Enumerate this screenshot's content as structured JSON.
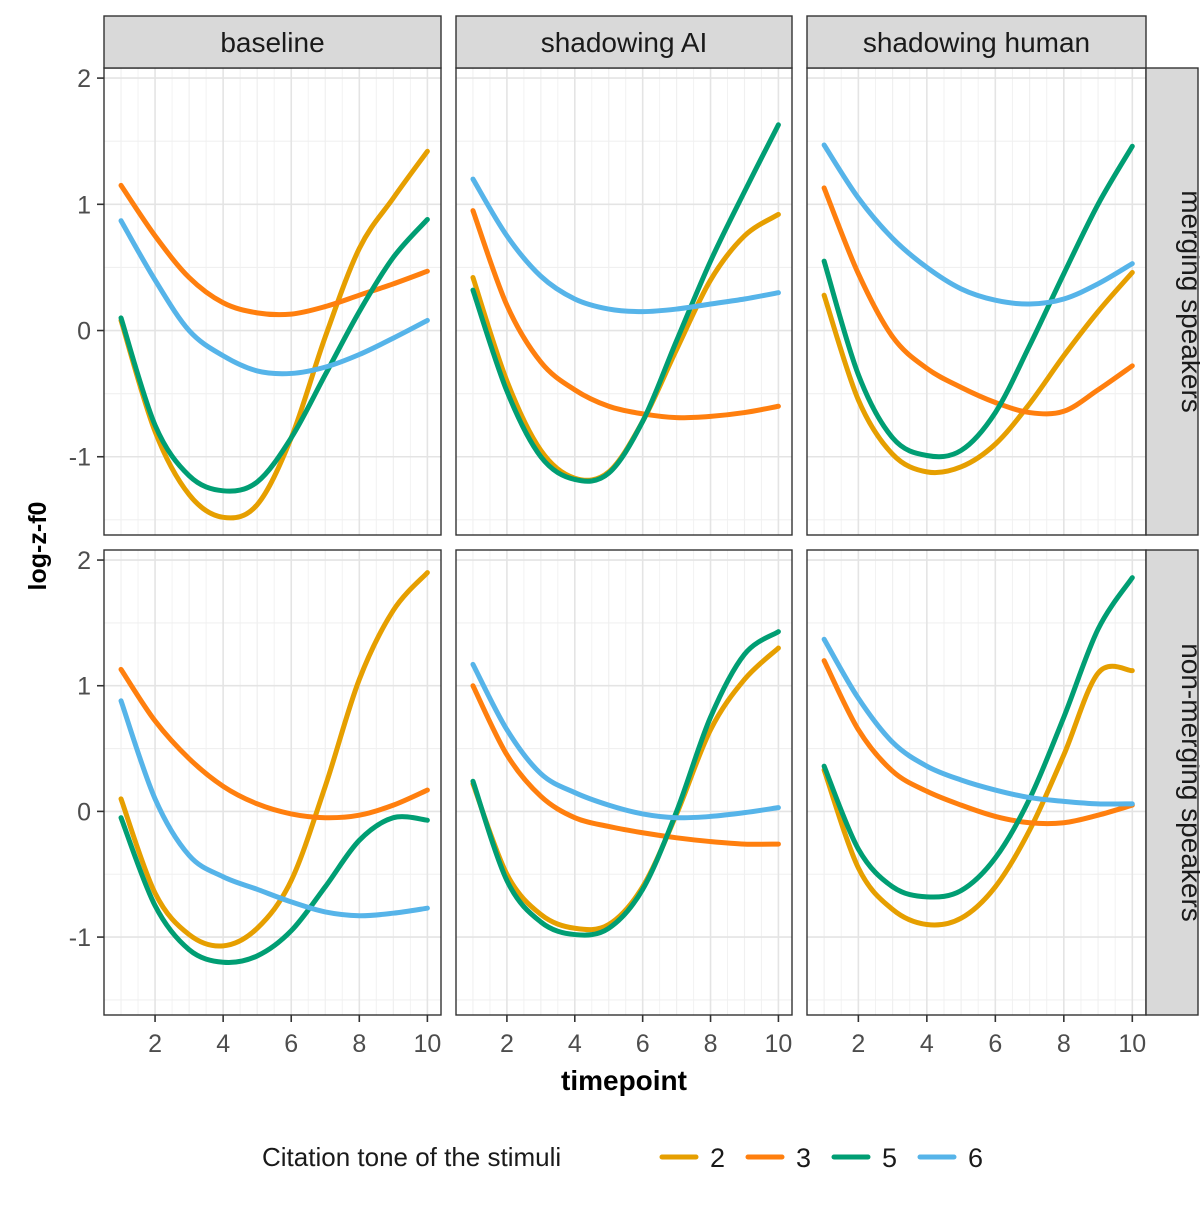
{
  "chart_data": {
    "type": "line",
    "xlabel": "timepoint",
    "ylabel": "log-z-f0",
    "xlim": [
      0.5,
      10.4
    ],
    "ylim": [
      -1.62,
      2.08
    ],
    "x_ticks": [
      2,
      4,
      6,
      8,
      10
    ],
    "y_ticks": [
      -1,
      0,
      1,
      2
    ],
    "y_tick_labels": [
      "-1",
      "0",
      "1",
      "2"
    ],
    "grid": true,
    "column_facets": [
      "baseline",
      "shadowing AI",
      "shadowing human"
    ],
    "row_facets": [
      "merging speakers",
      "non-merging speakers"
    ],
    "legend": {
      "title": "Citation tone of the stimuli",
      "position": "bottom",
      "entries": [
        {
          "label": "2",
          "color": "#E69F00"
        },
        {
          "label": "3",
          "color": "#FF7F0E"
        },
        {
          "label": "5",
          "color": "#009E73"
        },
        {
          "label": "6",
          "color": "#56B4E9"
        }
      ]
    },
    "x": [
      1,
      2,
      3,
      4,
      5,
      6,
      7,
      8,
      9,
      10
    ],
    "panels": [
      {
        "row": "merging speakers",
        "column": "baseline",
        "series": [
          {
            "name": "2",
            "values": [
              0.08,
              -0.8,
              -1.3,
              -1.48,
              -1.38,
              -0.85,
              -0.05,
              0.65,
              1.05,
              1.42
            ]
          },
          {
            "name": "3",
            "values": [
              1.15,
              0.75,
              0.42,
              0.22,
              0.14,
              0.13,
              0.19,
              0.28,
              0.37,
              0.47
            ]
          },
          {
            "name": "5",
            "values": [
              0.1,
              -0.75,
              -1.15,
              -1.27,
              -1.2,
              -0.85,
              -0.35,
              0.15,
              0.58,
              0.88
            ]
          },
          {
            "name": "6",
            "values": [
              0.87,
              0.4,
              0.0,
              -0.2,
              -0.32,
              -0.34,
              -0.29,
              -0.19,
              -0.06,
              0.08
            ]
          }
        ]
      },
      {
        "row": "merging speakers",
        "column": "shadowing AI",
        "series": [
          {
            "name": "2",
            "values": [
              0.42,
              -0.4,
              -0.95,
              -1.17,
              -1.12,
              -0.72,
              -0.15,
              0.4,
              0.75,
              0.92
            ]
          },
          {
            "name": "3",
            "values": [
              0.95,
              0.2,
              -0.25,
              -0.47,
              -0.6,
              -0.66,
              -0.69,
              -0.68,
              -0.65,
              -0.6
            ]
          },
          {
            "name": "5",
            "values": [
              0.32,
              -0.48,
              -1.0,
              -1.18,
              -1.13,
              -0.72,
              -0.08,
              0.55,
              1.1,
              1.63
            ]
          },
          {
            "name": "6",
            "values": [
              1.2,
              0.75,
              0.43,
              0.25,
              0.17,
              0.15,
              0.17,
              0.21,
              0.25,
              0.3
            ]
          }
        ]
      },
      {
        "row": "merging speakers",
        "column": "shadowing human",
        "series": [
          {
            "name": "2",
            "values": [
              0.28,
              -0.55,
              -0.98,
              -1.12,
              -1.08,
              -0.9,
              -0.58,
              -0.2,
              0.15,
              0.46
            ]
          },
          {
            "name": "3",
            "values": [
              1.13,
              0.45,
              -0.05,
              -0.3,
              -0.45,
              -0.57,
              -0.65,
              -0.64,
              -0.47,
              -0.28
            ]
          },
          {
            "name": "5",
            "values": [
              0.55,
              -0.35,
              -0.85,
              -0.99,
              -0.95,
              -0.65,
              -0.12,
              0.45,
              1.0,
              1.46
            ]
          },
          {
            "name": "6",
            "values": [
              1.47,
              1.05,
              0.73,
              0.5,
              0.33,
              0.24,
              0.21,
              0.25,
              0.37,
              0.53
            ]
          }
        ]
      },
      {
        "row": "non-merging speakers",
        "column": "baseline",
        "series": [
          {
            "name": "2",
            "values": [
              0.1,
              -0.65,
              -0.98,
              -1.07,
              -0.93,
              -0.55,
              0.2,
              1.05,
              1.6,
              1.9
            ]
          },
          {
            "name": "3",
            "values": [
              1.13,
              0.72,
              0.42,
              0.2,
              0.06,
              -0.02,
              -0.05,
              -0.03,
              0.05,
              0.17
            ]
          },
          {
            "name": "5",
            "values": [
              -0.05,
              -0.75,
              -1.1,
              -1.2,
              -1.15,
              -0.95,
              -0.6,
              -0.23,
              -0.05,
              -0.07
            ]
          },
          {
            "name": "6",
            "values": [
              0.88,
              0.1,
              -0.35,
              -0.52,
              -0.62,
              -0.72,
              -0.8,
              -0.83,
              -0.81,
              -0.77
            ]
          }
        ]
      },
      {
        "row": "non-merging speakers",
        "column": "shadowing AI",
        "series": [
          {
            "name": "2",
            "values": [
              0.22,
              -0.5,
              -0.82,
              -0.93,
              -0.9,
              -0.6,
              -0.02,
              0.65,
              1.05,
              1.3
            ]
          },
          {
            "name": "3",
            "values": [
              1.0,
              0.45,
              0.12,
              -0.05,
              -0.12,
              -0.17,
              -0.21,
              -0.24,
              -0.26,
              -0.26
            ]
          },
          {
            "name": "5",
            "values": [
              0.24,
              -0.55,
              -0.88,
              -0.98,
              -0.93,
              -0.62,
              0.0,
              0.75,
              1.25,
              1.43
            ]
          },
          {
            "name": "6",
            "values": [
              1.17,
              0.65,
              0.3,
              0.15,
              0.05,
              -0.02,
              -0.05,
              -0.04,
              -0.01,
              0.03
            ]
          }
        ]
      },
      {
        "row": "non-merging speakers",
        "column": "shadowing human",
        "series": [
          {
            "name": "2",
            "values": [
              0.33,
              -0.45,
              -0.78,
              -0.9,
              -0.85,
              -0.6,
              -0.15,
              0.45,
              1.1,
              1.12
            ]
          },
          {
            "name": "3",
            "values": [
              1.2,
              0.65,
              0.32,
              0.16,
              0.05,
              -0.04,
              -0.09,
              -0.09,
              -0.03,
              0.05
            ]
          },
          {
            "name": "5",
            "values": [
              0.36,
              -0.3,
              -0.6,
              -0.68,
              -0.63,
              -0.37,
              0.1,
              0.75,
              1.45,
              1.86
            ]
          },
          {
            "name": "6",
            "values": [
              1.37,
              0.9,
              0.55,
              0.36,
              0.25,
              0.17,
              0.11,
              0.08,
              0.06,
              0.06
            ]
          }
        ]
      }
    ]
  }
}
